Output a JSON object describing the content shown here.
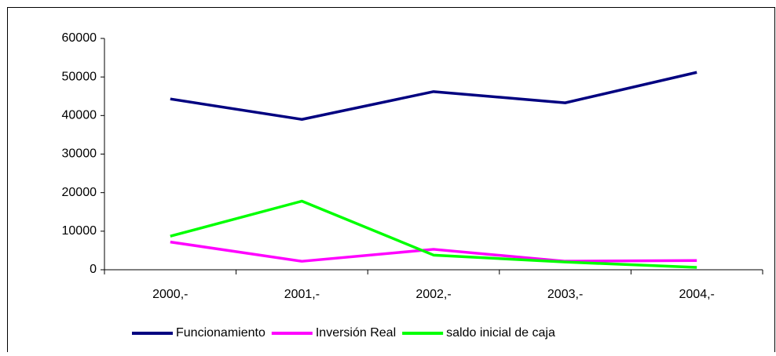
{
  "chart_data": {
    "type": "line",
    "categories": [
      "2000,-",
      "2001,-",
      "2002,-",
      "2003,-",
      "2004,-"
    ],
    "series": [
      {
        "name": "Funcionamiento",
        "color": "#000080",
        "values": [
          44300,
          39000,
          46200,
          43300,
          51200
        ]
      },
      {
        "name": "Inversión Real",
        "color": "#ff00ff",
        "values": [
          7200,
          2200,
          5300,
          2200,
          2400
        ]
      },
      {
        "name": "saldo inicial de caja",
        "color": "#00ff00",
        "values": [
          8700,
          17800,
          3800,
          2000,
          600
        ]
      }
    ],
    "ylim": [
      0,
      60000
    ],
    "yticks": [
      0,
      10000,
      20000,
      30000,
      40000,
      50000,
      60000
    ],
    "grid": false,
    "legend": "bottom"
  }
}
